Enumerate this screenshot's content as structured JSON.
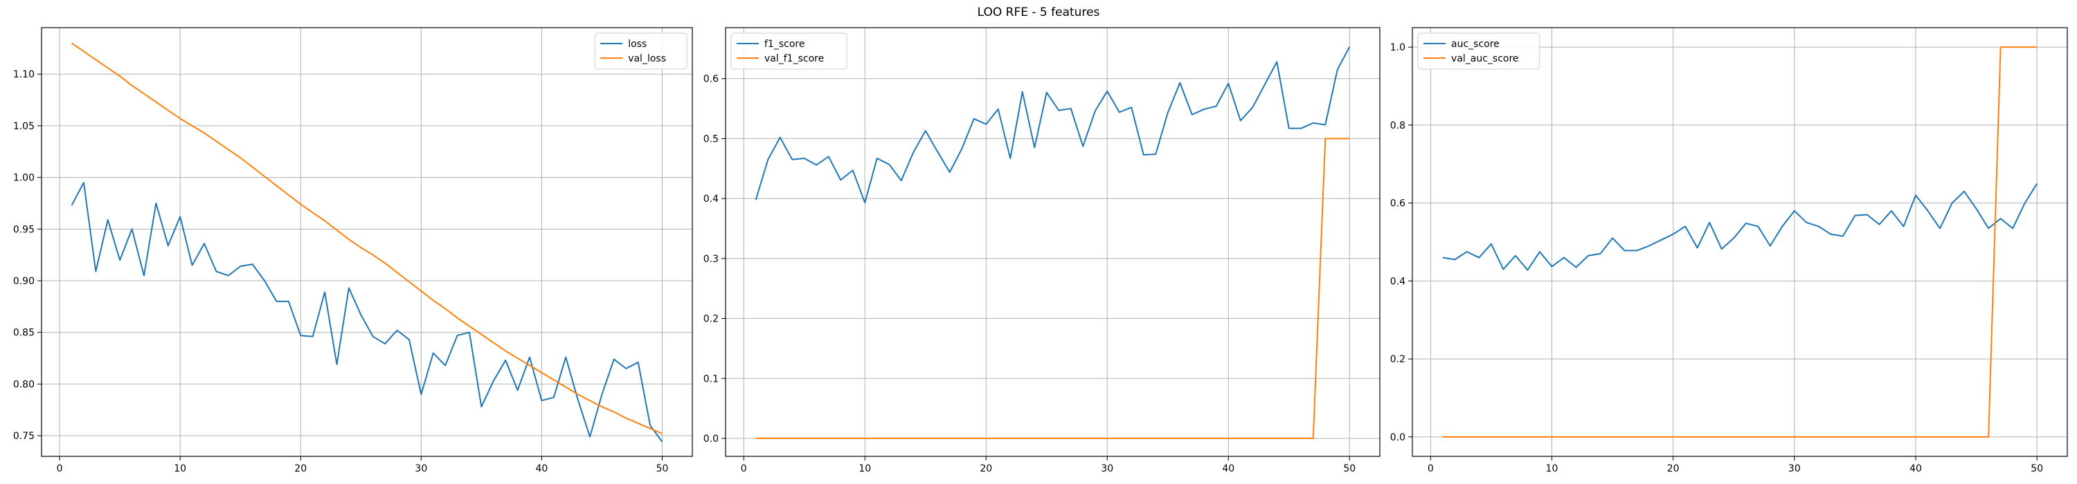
{
  "figure": {
    "title": "LOO RFE - 5 features"
  },
  "colors": {
    "series1": "#1f77b4",
    "series2": "#ff7f0e",
    "grid": "#b0b0b0"
  },
  "chart_data": [
    {
      "type": "line",
      "title": "",
      "xlabel": "",
      "ylabel": "",
      "xlim": [
        -1.5,
        52.5
      ],
      "ylim": [
        0.73,
        1.145
      ],
      "grid": true,
      "legend": "top-right",
      "xticks": [
        0,
        10,
        20,
        30,
        40,
        50
      ],
      "yticks": [
        0.75,
        0.8,
        0.85,
        0.9,
        0.95,
        1.0,
        1.05,
        1.1
      ],
      "ytick_labels": [
        "0.75",
        "0.80",
        "0.85",
        "0.90",
        "0.95",
        "1.00",
        "1.05",
        "1.10"
      ],
      "x": [
        1,
        2,
        3,
        4,
        5,
        6,
        7,
        8,
        9,
        10,
        11,
        12,
        13,
        14,
        15,
        16,
        17,
        18,
        19,
        20,
        21,
        22,
        23,
        24,
        25,
        26,
        27,
        28,
        29,
        30,
        31,
        32,
        33,
        34,
        35,
        36,
        37,
        38,
        39,
        40,
        41,
        42,
        43,
        44,
        45,
        46,
        47,
        48,
        49,
        50
      ],
      "series": [
        {
          "name": "loss",
          "values": [
            0.973,
            0.995,
            0.909,
            0.959,
            0.92,
            0.95,
            0.905,
            0.975,
            0.934,
            0.962,
            0.915,
            0.936,
            0.909,
            0.905,
            0.914,
            0.916,
            0.9,
            0.88,
            0.88,
            0.847,
            0.846,
            0.889,
            0.819,
            0.893,
            0.867,
            0.846,
            0.839,
            0.852,
            0.843,
            0.79,
            0.83,
            0.818,
            0.847,
            0.85,
            0.778,
            0.803,
            0.823,
            0.794,
            0.826,
            0.784,
            0.787,
            0.826,
            0.785,
            0.749,
            0.79,
            0.824,
            0.815,
            0.821,
            0.76,
            0.744
          ]
        },
        {
          "name": "val_loss",
          "values": [
            1.13,
            1.122,
            1.114,
            1.106,
            1.098,
            1.089,
            1.081,
            1.073,
            1.065,
            1.057,
            1.05,
            1.043,
            1.035,
            1.027,
            1.019,
            1.01,
            1.001,
            0.992,
            0.983,
            0.974,
            0.966,
            0.958,
            0.949,
            0.94,
            0.932,
            0.925,
            0.917,
            0.908,
            0.899,
            0.89,
            0.881,
            0.873,
            0.864,
            0.856,
            0.848,
            0.84,
            0.832,
            0.825,
            0.818,
            0.811,
            0.804,
            0.797,
            0.79,
            0.784,
            0.778,
            0.773,
            0.767,
            0.762,
            0.757,
            0.752
          ]
        }
      ]
    },
    {
      "type": "line",
      "title": "",
      "xlabel": "",
      "ylabel": "",
      "xlim": [
        -1.5,
        52.5
      ],
      "ylim": [
        -0.03,
        0.685
      ],
      "grid": true,
      "legend": "top-left",
      "xticks": [
        0,
        10,
        20,
        30,
        40,
        50
      ],
      "yticks": [
        0.0,
        0.1,
        0.2,
        0.3,
        0.4,
        0.5,
        0.6
      ],
      "ytick_labels": [
        "0.0",
        "0.1",
        "0.2",
        "0.3",
        "0.4",
        "0.5",
        "0.6"
      ],
      "x": [
        1,
        2,
        3,
        4,
        5,
        6,
        7,
        8,
        9,
        10,
        11,
        12,
        13,
        14,
        15,
        16,
        17,
        18,
        19,
        20,
        21,
        22,
        23,
        24,
        25,
        26,
        27,
        28,
        29,
        30,
        31,
        32,
        33,
        34,
        35,
        36,
        37,
        38,
        39,
        40,
        41,
        42,
        43,
        44,
        45,
        46,
        47,
        48,
        49,
        50
      ],
      "series": [
        {
          "name": "f1_score",
          "values": [
            0.398,
            0.465,
            0.502,
            0.465,
            0.467,
            0.456,
            0.47,
            0.431,
            0.447,
            0.393,
            0.467,
            0.457,
            0.43,
            0.477,
            0.513,
            0.478,
            0.444,
            0.483,
            0.533,
            0.524,
            0.549,
            0.467,
            0.578,
            0.485,
            0.577,
            0.547,
            0.55,
            0.487,
            0.546,
            0.579,
            0.544,
            0.552,
            0.473,
            0.474,
            0.543,
            0.593,
            0.54,
            0.549,
            0.554,
            0.592,
            0.53,
            0.552,
            0.59,
            0.628,
            0.517,
            0.517,
            0.526,
            0.523,
            0.615,
            0.653
          ]
        },
        {
          "name": "val_f1_score",
          "values": [
            0,
            0,
            0,
            0,
            0,
            0,
            0,
            0,
            0,
            0,
            0,
            0,
            0,
            0,
            0,
            0,
            0,
            0,
            0,
            0,
            0,
            0,
            0,
            0,
            0,
            0,
            0,
            0,
            0,
            0,
            0,
            0,
            0,
            0,
            0,
            0,
            0,
            0,
            0,
            0,
            0,
            0,
            0,
            0,
            0,
            0,
            0,
            0.5,
            0.5,
            0.5
          ]
        }
      ]
    },
    {
      "type": "line",
      "title": "",
      "xlabel": "",
      "ylabel": "",
      "xlim": [
        -1.5,
        52.5
      ],
      "ylim": [
        -0.05,
        1.05
      ],
      "grid": true,
      "legend": "top-left",
      "xticks": [
        0,
        10,
        20,
        30,
        40,
        50
      ],
      "yticks": [
        0.0,
        0.2,
        0.4,
        0.6,
        0.8,
        1.0
      ],
      "ytick_labels": [
        "0.0",
        "0.2",
        "0.4",
        "0.6",
        "0.8",
        "1.0"
      ],
      "x": [
        1,
        2,
        3,
        4,
        5,
        6,
        7,
        8,
        9,
        10,
        11,
        12,
        13,
        14,
        15,
        16,
        17,
        18,
        19,
        20,
        21,
        22,
        23,
        24,
        25,
        26,
        27,
        28,
        29,
        30,
        31,
        32,
        33,
        34,
        35,
        36,
        37,
        38,
        39,
        40,
        41,
        42,
        43,
        44,
        45,
        46,
        47,
        48,
        49,
        50
      ],
      "series": [
        {
          "name": "auc_score",
          "values": [
            0.46,
            0.455,
            0.475,
            0.46,
            0.495,
            0.43,
            0.465,
            0.428,
            0.475,
            0.437,
            0.46,
            0.435,
            0.465,
            0.47,
            0.51,
            0.478,
            0.478,
            0.49,
            0.505,
            0.52,
            0.54,
            0.485,
            0.55,
            0.482,
            0.51,
            0.548,
            0.54,
            0.49,
            0.54,
            0.58,
            0.55,
            0.54,
            0.52,
            0.515,
            0.568,
            0.57,
            0.545,
            0.58,
            0.54,
            0.62,
            0.58,
            0.535,
            0.6,
            0.63,
            0.585,
            0.535,
            0.56,
            0.535,
            0.6,
            0.65
          ]
        },
        {
          "name": "val_auc_score",
          "values": [
            0,
            0,
            0,
            0,
            0,
            0,
            0,
            0,
            0,
            0,
            0,
            0,
            0,
            0,
            0,
            0,
            0,
            0,
            0,
            0,
            0,
            0,
            0,
            0,
            0,
            0,
            0,
            0,
            0,
            0,
            0,
            0,
            0,
            0,
            0,
            0,
            0,
            0,
            0,
            0,
            0,
            0,
            0,
            0,
            0,
            0,
            1,
            1,
            1,
            1
          ]
        }
      ]
    }
  ]
}
